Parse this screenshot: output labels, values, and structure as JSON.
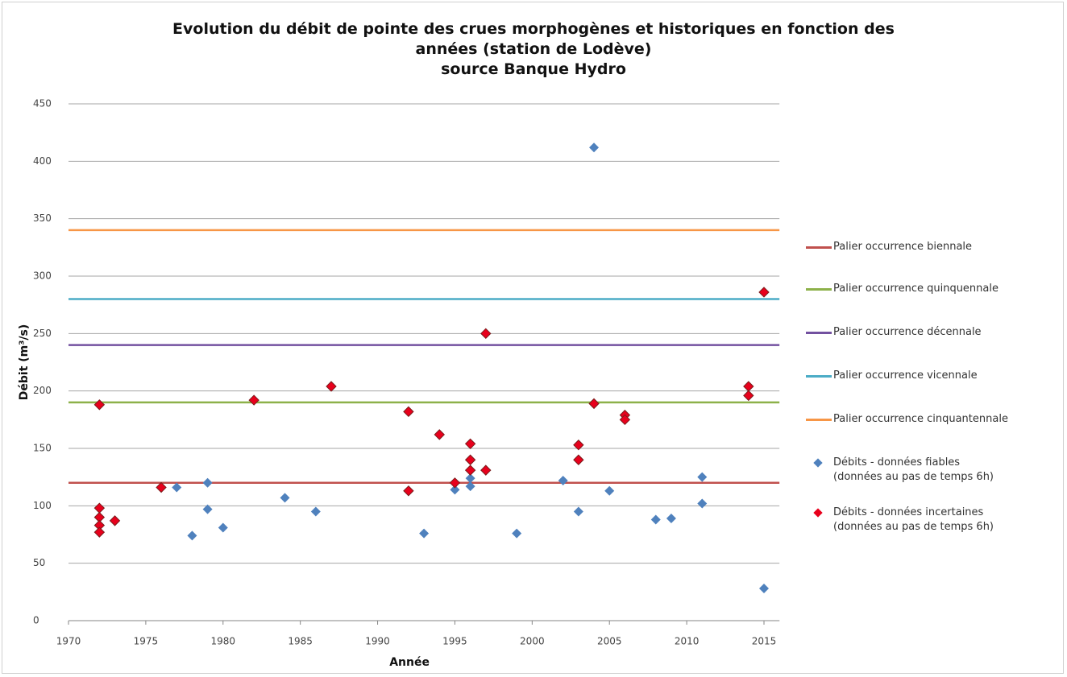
{
  "chart_data": {
    "type": "scatter",
    "title": "Evolution du débit de pointe des crues morphogènes et historiques en fonction des\nannées  (station de Lodève)\nsource Banque Hydro",
    "xlabel": "Année",
    "ylabel": "Débit (m³/s)",
    "xlim": [
      1970,
      2016
    ],
    "xticks": [
      1970,
      1975,
      1980,
      1985,
      1990,
      1995,
      2000,
      2005,
      2010,
      2015
    ],
    "ylim": [
      0,
      450
    ],
    "yticks": [
      0,
      50,
      100,
      150,
      200,
      250,
      300,
      350,
      400,
      450
    ],
    "grid": true,
    "legend": "right",
    "hlines": [
      {
        "name": "Palier occurrence biennale",
        "color": "#c0504d",
        "value": 120
      },
      {
        "name": "Palier occurrence quinquennale",
        "color": "#8db14a",
        "value": 190
      },
      {
        "name": "Palier occurrence décennale",
        "color": "#7351a0",
        "value": 240
      },
      {
        "name": "Palier occurrence vicennale",
        "color": "#4bacc6",
        "value": 280
      },
      {
        "name": "Palier occurrence cinquantennale",
        "color": "#f79646",
        "value": 340
      }
    ],
    "series": [
      {
        "name": "Débits - données fiables\n(données au pas de temps 6h)",
        "color": "#4f81bd",
        "x": [
          1977,
          1978,
          1979,
          1979,
          1980,
          1984,
          1986,
          1993,
          1995,
          1996,
          1996,
          1999,
          2002,
          2003,
          2004,
          2005,
          2008,
          2009,
          2011,
          2011,
          2015
        ],
        "values": [
          116,
          74,
          120,
          97,
          81,
          107,
          95,
          76,
          114,
          124,
          117,
          76,
          122,
          95,
          412,
          113,
          88,
          89,
          125,
          102,
          28
        ]
      },
      {
        "name": "Débits - données incertaines\n(données au pas de temps 6h)",
        "color": "#e8001c",
        "x": [
          1972,
          1972,
          1972,
          1972,
          1972,
          1973,
          1976,
          1982,
          1987,
          1992,
          1992,
          1994,
          1995,
          1996,
          1996,
          1996,
          1997,
          1997,
          2003,
          2003,
          2004,
          2006,
          2006,
          2014,
          2014,
          2015
        ],
        "values": [
          188,
          98,
          90,
          83,
          77,
          87,
          116,
          192,
          204,
          182,
          113,
          162,
          120,
          154,
          140,
          131,
          250,
          131,
          153,
          140,
          189,
          179,
          175,
          204,
          196,
          286
        ]
      }
    ]
  }
}
